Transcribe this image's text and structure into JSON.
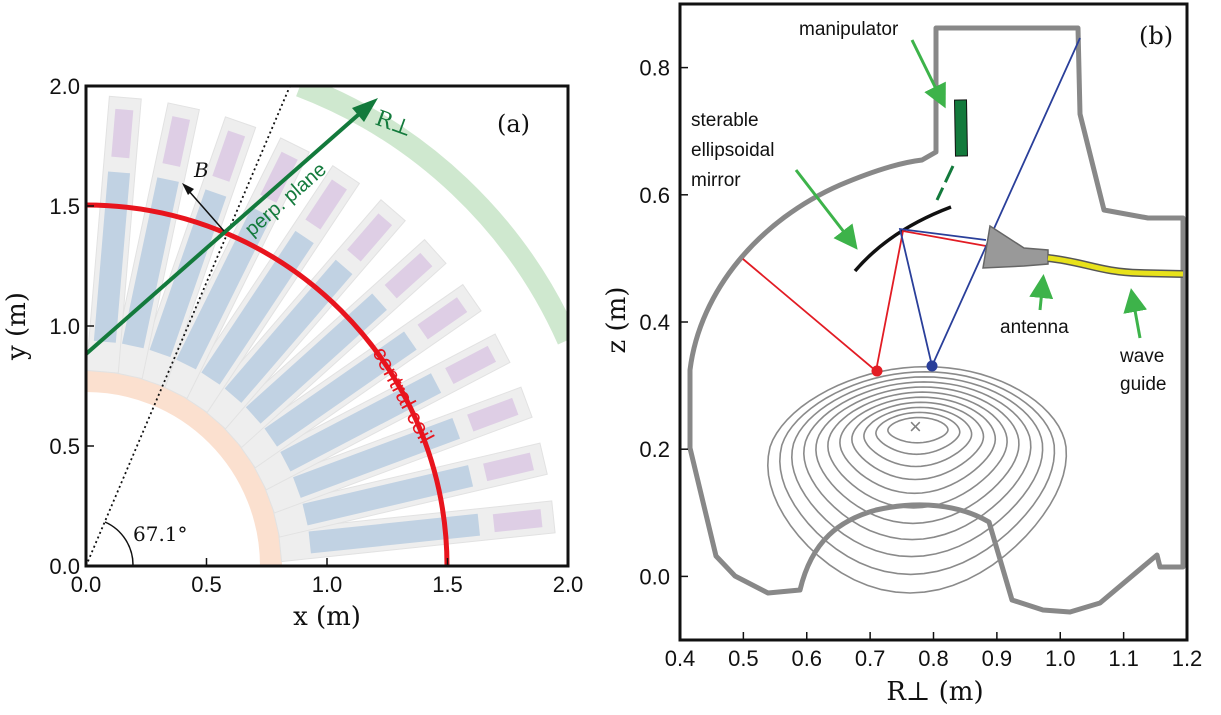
{
  "panel_a": {
    "label": "(a)",
    "xlabel": "x (m)",
    "ylabel": "y (m)",
    "xlim": [
      0,
      2
    ],
    "ylim": [
      0,
      2
    ],
    "xticks": [
      "0.0",
      "0.5",
      "1.0",
      "1.5",
      "2.0"
    ],
    "yticks": [
      "0.0",
      "0.5",
      "1.0",
      "1.5",
      "2.0"
    ],
    "coil_label": "central coil",
    "coil_radius": 1.5,
    "plane_label": "perp. plane",
    "axis_label": "R⊥",
    "b_label": "B",
    "angle_label": "67.1°",
    "angle_deg": 67.1,
    "colors": {
      "coil": "#e8141d",
      "plane": "#137a3c",
      "dotted": "#111111"
    }
  },
  "panel_b": {
    "label": "(b)",
    "xlabel": "R⊥ (m)",
    "ylabel": "z (m)",
    "xlim": [
      0.4,
      1.2
    ],
    "ylim": [
      -0.1,
      0.9
    ],
    "xticks": [
      "0.4",
      "0.5",
      "0.6",
      "0.7",
      "0.8",
      "0.9",
      "1.0",
      "1.1",
      "1.2"
    ],
    "yticks": [
      "0.0",
      "0.2",
      "0.4",
      "0.6",
      "0.8"
    ],
    "labels": {
      "manipulator": "manipulator",
      "mirror_1": "sterable",
      "mirror_2": "ellipsoidal",
      "mirror_3": "mirror",
      "antenna": "antenna",
      "wave_1": "wave",
      "wave_2": "guide"
    },
    "o_point": [
      0.77,
      0.23
    ],
    "red_point": [
      0.71,
      0.32
    ],
    "blue_point": [
      0.795,
      0.327
    ],
    "colors": {
      "vessel": "#808080",
      "red_ray": "#e21c24",
      "blue_ray": "#2a3f9a",
      "waveguide": "#e8e21a",
      "arrow": "#3db34a",
      "manipulator": "#137a3c"
    }
  }
}
